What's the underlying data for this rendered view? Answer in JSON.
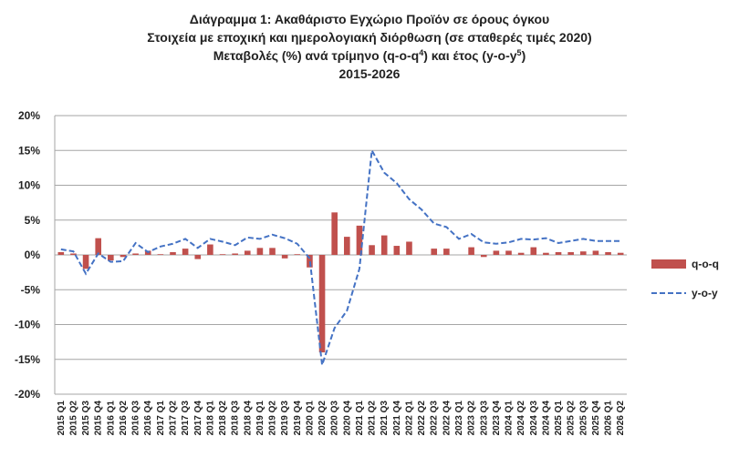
{
  "chart_data": {
    "type": "bar_line",
    "title_lines": [
      [
        "Διάγραμμα 1: Ακαθάριστο Εγχώριο Προϊόν σε όρους όγκου"
      ],
      [
        "Στοιχεία με εποχική και ημερολογιακή διόρθωση (σε σταθερές τιμές 2020)"
      ],
      [
        "Μεταβολές (%) ανά τρίμηνο (q-o-q",
        "4",
        ") και έτος (y-o-y",
        "5",
        ")"
      ],
      [
        "2015-2026"
      ]
    ],
    "categories": [
      "2015 Q1",
      "2015 Q2",
      "2015 Q3",
      "2015 Q4",
      "2016 Q1",
      "2016 Q2",
      "2016 Q3",
      "2016 Q4",
      "2017 Q1",
      "2017 Q2",
      "2017 Q3",
      "2017 Q4",
      "2018 Q1",
      "2018 Q2",
      "2018 Q3",
      "2018 Q4",
      "2019 Q1",
      "2019 Q2",
      "2019 Q3",
      "2019 Q4",
      "2020 Q1",
      "2020 Q2",
      "2020 Q3",
      "2020 Q4",
      "2021 Q1",
      "2021 Q2",
      "2021 Q3",
      "2021 Q4",
      "2022 Q1",
      "2022 Q2",
      "2022 Q3",
      "2022 Q4",
      "2023 Q1",
      "2023 Q2",
      "2023 Q3",
      "2023 Q4",
      "2024 Q1",
      "2024 Q2",
      "2024 Q3",
      "2024 Q4",
      "2025 Q1",
      "2025 Q2",
      "2025 Q3",
      "2025 Q4",
      "2026 Q1",
      "2026 Q2"
    ],
    "series": [
      {
        "name": "q-o-q",
        "kind": "bar",
        "color": "#c0504d",
        "values": [
          0.4,
          0.2,
          -2.0,
          2.4,
          -0.8,
          -0.3,
          0.2,
          0.6,
          0.1,
          0.4,
          0.9,
          -0.6,
          1.5,
          0.1,
          0.2,
          0.6,
          1.0,
          1.0,
          -0.5,
          0.1,
          -1.8,
          -14.0,
          6.1,
          2.6,
          4.2,
          1.4,
          2.8,
          1.3,
          1.9,
          0.0,
          0.9,
          0.9,
          0.0,
          1.1,
          -0.3,
          0.6,
          0.6,
          0.3,
          1.1,
          0.3,
          0.4,
          0.4,
          0.5,
          0.6,
          0.4,
          0.3
        ]
      },
      {
        "name": "y-o-y",
        "kind": "line",
        "color": "#4472c4",
        "values": [
          0.8,
          0.5,
          -2.7,
          0.2,
          -1.0,
          -0.9,
          1.7,
          0.4,
          1.2,
          1.6,
          2.3,
          1.0,
          2.3,
          1.9,
          1.4,
          2.5,
          2.3,
          2.9,
          2.4,
          1.6,
          -0.5,
          -15.8,
          -10.5,
          -8.0,
          -2.0,
          15.0,
          11.8,
          10.3,
          8.0,
          6.5,
          4.5,
          4.0,
          2.3,
          3.0,
          1.8,
          1.6,
          1.8,
          2.3,
          2.2,
          2.4,
          1.7,
          2.0,
          2.3,
          2.0,
          2.0,
          2.0
        ]
      }
    ],
    "ylim": [
      -20,
      20
    ],
    "yticks": [
      {
        "value": -20,
        "label": "-20%"
      },
      {
        "value": -15,
        "label": "-15%"
      },
      {
        "value": -10,
        "label": "-10%"
      },
      {
        "value": -5,
        "label": "-5%"
      },
      {
        "value": 0,
        "label": "0%"
      },
      {
        "value": 5,
        "label": "5%"
      },
      {
        "value": 10,
        "label": "10%"
      },
      {
        "value": 15,
        "label": "15%"
      },
      {
        "value": 20,
        "label": "20%"
      }
    ],
    "grid": true
  }
}
